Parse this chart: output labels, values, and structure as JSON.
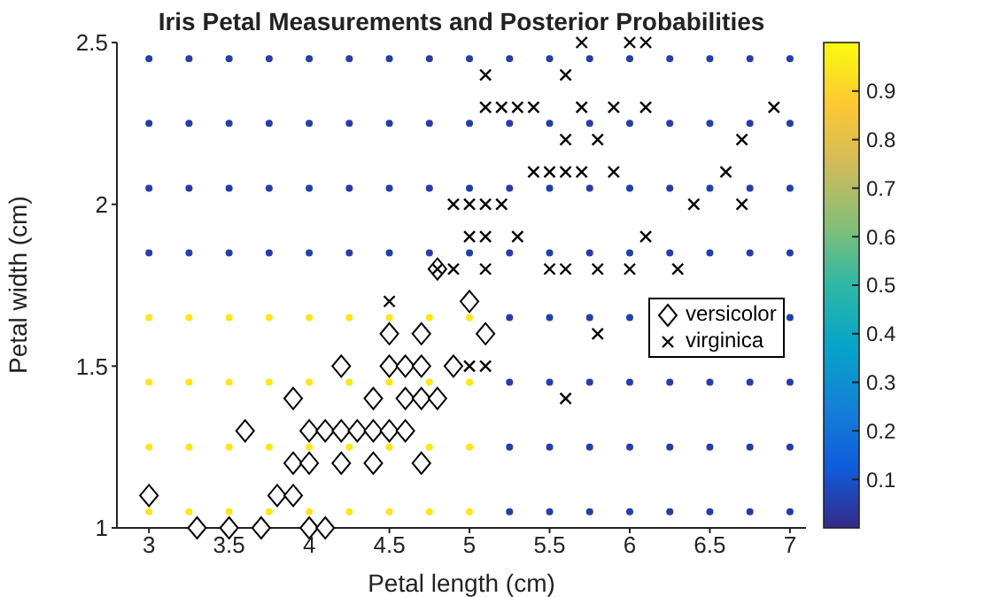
{
  "chart_data": {
    "type": "scatter",
    "title": "Iris Petal Measurements and Posterior Probabilities",
    "xlabel": "Petal length (cm)",
    "ylabel": "Petal width (cm)",
    "xlim": [
      2.8,
      7.1
    ],
    "xticks": [
      3,
      3.5,
      4,
      4.5,
      5,
      5.5,
      6,
      6.5,
      7
    ],
    "ylim": [
      1,
      2.5
    ],
    "yticks": [
      1,
      1.5,
      2,
      2.5
    ],
    "clim": [
      0,
      1
    ],
    "cticks": [
      0.1,
      0.2,
      0.3,
      0.4,
      0.5,
      0.6,
      0.7,
      0.8,
      0.9
    ],
    "legend": "right",
    "series": [
      {
        "marker": "circle",
        "color": "#fbe71c",
        "x": [
          3,
          3.25,
          3.5,
          3.75,
          4,
          4.25,
          4.5,
          4.75,
          5,
          3,
          3.25,
          3.5,
          3.75,
          4,
          4.25,
          4.5,
          4.75,
          5,
          3,
          3.25,
          3.5,
          3.75,
          4,
          4.25,
          4.5,
          4.75,
          5,
          3,
          3.25,
          3.5,
          3.75,
          4,
          4.25,
          4.5,
          4.75,
          5
        ],
        "values": [
          1.05,
          1.05,
          1.05,
          1.05,
          1.05,
          1.05,
          1.05,
          1.05,
          1.05,
          1.25,
          1.25,
          1.25,
          1.25,
          1.25,
          1.25,
          1.25,
          1.25,
          1.25,
          1.45,
          1.45,
          1.45,
          1.45,
          1.45,
          1.45,
          1.45,
          1.45,
          1.45,
          1.65,
          1.65,
          1.65,
          1.65,
          1.65,
          1.65,
          1.65,
          1.65,
          1.65
        ]
      },
      {
        "marker": "circle",
        "color": "#263ea9",
        "x": [
          5.25,
          5.5,
          5.75,
          6,
          6.25,
          6.5,
          6.75,
          7,
          5.25,
          5.5,
          5.75,
          6,
          6.25,
          6.5,
          6.75,
          7,
          5.25,
          5.5,
          5.75,
          6,
          6.25,
          6.5,
          6.75,
          7,
          5.25,
          5.5,
          5.75,
          6,
          7,
          3,
          3.25,
          3.5,
          3.75,
          4,
          4.25,
          4.5,
          4.75,
          5,
          5.25,
          5.5,
          5.75,
          6,
          6.25,
          6.5,
          6.75,
          7,
          3,
          3.25,
          3.5,
          3.75,
          4,
          4.25,
          4.5,
          4.75,
          5,
          5.25,
          5.5,
          5.75,
          6,
          6.25,
          6.5,
          6.75,
          7,
          3,
          3.25,
          3.5,
          3.75,
          4,
          4.25,
          4.5,
          4.75,
          5,
          5.25,
          5.5,
          5.75,
          6,
          6.25,
          6.5,
          6.75,
          7,
          3,
          3.25,
          3.5,
          3.75,
          4,
          4.25,
          4.5,
          4.75,
          5,
          5.25,
          5.5,
          5.75,
          6,
          6.25,
          6.5,
          6.75,
          7
        ],
        "values": [
          1.05,
          1.05,
          1.05,
          1.05,
          1.05,
          1.05,
          1.05,
          1.05,
          1.25,
          1.25,
          1.25,
          1.25,
          1.25,
          1.25,
          1.25,
          1.25,
          1.45,
          1.45,
          1.45,
          1.45,
          1.45,
          1.45,
          1.45,
          1.45,
          1.65,
          1.65,
          1.65,
          1.65,
          1.65,
          1.85,
          1.85,
          1.85,
          1.85,
          1.85,
          1.85,
          1.85,
          1.85,
          1.85,
          1.85,
          1.85,
          1.85,
          1.85,
          1.85,
          1.85,
          1.85,
          1.85,
          2.05,
          2.05,
          2.05,
          2.05,
          2.05,
          2.05,
          2.05,
          2.05,
          2.05,
          2.05,
          2.05,
          2.05,
          2.05,
          2.05,
          2.05,
          2.05,
          2.05,
          2.25,
          2.25,
          2.25,
          2.25,
          2.25,
          2.25,
          2.25,
          2.25,
          2.25,
          2.25,
          2.25,
          2.25,
          2.25,
          2.25,
          2.25,
          2.25,
          2.25,
          2.45,
          2.45,
          2.45,
          2.45,
          2.45,
          2.45,
          2.45,
          2.45,
          2.45,
          2.45,
          2.45,
          2.45,
          2.45,
          2.45,
          2.45,
          2.45,
          2.45
        ]
      },
      {
        "name": "versicolor",
        "color": "#000000",
        "marker": "diamond",
        "x": [
          3.0,
          3.3,
          3.5,
          3.7,
          4.0,
          4.1,
          3.8,
          3.9,
          3.9,
          4.0,
          4.2,
          4.4,
          4.7,
          3.6,
          4.0,
          4.1,
          4.2,
          4.3,
          4.4,
          4.5,
          4.6,
          3.9,
          4.4,
          4.6,
          4.7,
          4.8,
          4.2,
          4.5,
          4.6,
          4.7,
          4.9,
          4.5,
          4.7,
          5.1,
          5.0,
          4.8
        ],
        "values": [
          1.1,
          1.0,
          1.0,
          1.0,
          1.0,
          1.0,
          1.1,
          1.1,
          1.2,
          1.2,
          1.2,
          1.2,
          1.2,
          1.3,
          1.3,
          1.3,
          1.3,
          1.3,
          1.3,
          1.3,
          1.3,
          1.4,
          1.4,
          1.4,
          1.4,
          1.4,
          1.5,
          1.5,
          1.5,
          1.5,
          1.5,
          1.6,
          1.6,
          1.6,
          1.7,
          1.8
        ]
      },
      {
        "name": "virginica",
        "color": "#000000",
        "marker": "cross",
        "x": [
          5.7,
          6.0,
          6.1,
          5.1,
          5.6,
          5.1,
          5.2,
          5.3,
          5.4,
          5.7,
          5.9,
          6.1,
          6.9,
          5.6,
          5.8,
          6.7,
          5.4,
          5.5,
          5.6,
          5.7,
          5.9,
          6.6,
          4.9,
          5.0,
          5.1,
          5.2,
          6.4,
          6.7,
          5.0,
          5.1,
          5.3,
          6.1,
          4.8,
          4.9,
          5.1,
          5.5,
          5.6,
          5.8,
          6.0,
          6.3,
          4.5,
          5.8,
          5.0,
          5.1,
          5.6
        ],
        "values": [
          2.5,
          2.5,
          2.5,
          2.4,
          2.4,
          2.3,
          2.3,
          2.3,
          2.3,
          2.3,
          2.3,
          2.3,
          2.3,
          2.2,
          2.2,
          2.2,
          2.1,
          2.1,
          2.1,
          2.1,
          2.1,
          2.1,
          2.0,
          2.0,
          2.0,
          2.0,
          2.0,
          2.0,
          1.9,
          1.9,
          1.9,
          1.9,
          1.8,
          1.8,
          1.8,
          1.8,
          1.8,
          1.8,
          1.8,
          1.8,
          1.7,
          1.6,
          1.5,
          1.5,
          1.4
        ]
      }
    ]
  }
}
